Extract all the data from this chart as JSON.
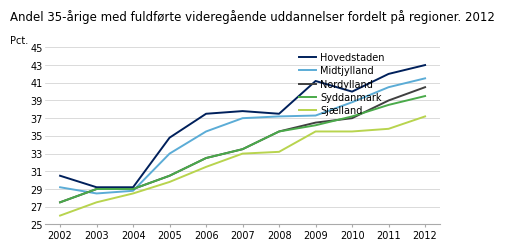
{
  "title": "Andel 35-årige med fuldførte videregående uddannelser fordelt på regioner. 2012",
  "ylabel": "Pct.",
  "years": [
    2002,
    2003,
    2004,
    2005,
    2006,
    2007,
    2008,
    2009,
    2010,
    2011,
    2012
  ],
  "series": {
    "Hovedstaden": [
      30.5,
      29.2,
      29.2,
      34.8,
      37.5,
      37.8,
      37.5,
      41.2,
      40.0,
      42.0,
      43.0
    ],
    "Midtjylland": [
      29.2,
      28.5,
      28.8,
      33.0,
      35.5,
      37.0,
      37.2,
      37.3,
      38.8,
      40.5,
      41.5
    ],
    "Nordylland": [
      27.5,
      29.0,
      29.0,
      30.5,
      32.5,
      33.5,
      35.5,
      36.5,
      37.0,
      39.0,
      40.5
    ],
    "Syddanmark": [
      27.5,
      29.0,
      29.0,
      30.5,
      32.5,
      33.5,
      35.5,
      36.2,
      37.2,
      38.5,
      39.5
    ],
    "Sjaelland": [
      26.0,
      27.5,
      28.5,
      29.8,
      31.5,
      33.0,
      33.2,
      35.5,
      35.5,
      35.8,
      37.2
    ]
  },
  "labels": {
    "Hovedstaden": "Hovedstaden",
    "Midtjylland": "Midtjylland",
    "Nordylland": "Nordylland",
    "Syddanmark": "Syddanmark",
    "Sjaelland": "Sjælland"
  },
  "colors": {
    "Hovedstaden": "#00205b",
    "Midtjylland": "#5bacd6",
    "Nordylland": "#404040",
    "Syddanmark": "#4aaa4a",
    "Sjaelland": "#b8d44e"
  },
  "ylim": [
    25,
    45
  ],
  "yticks": [
    25,
    27,
    29,
    31,
    33,
    35,
    37,
    39,
    41,
    43,
    45
  ],
  "background_color": "#ffffff",
  "title_fontsize": 8.5,
  "axis_fontsize": 7,
  "legend_fontsize": 7,
  "linewidth": 1.4
}
